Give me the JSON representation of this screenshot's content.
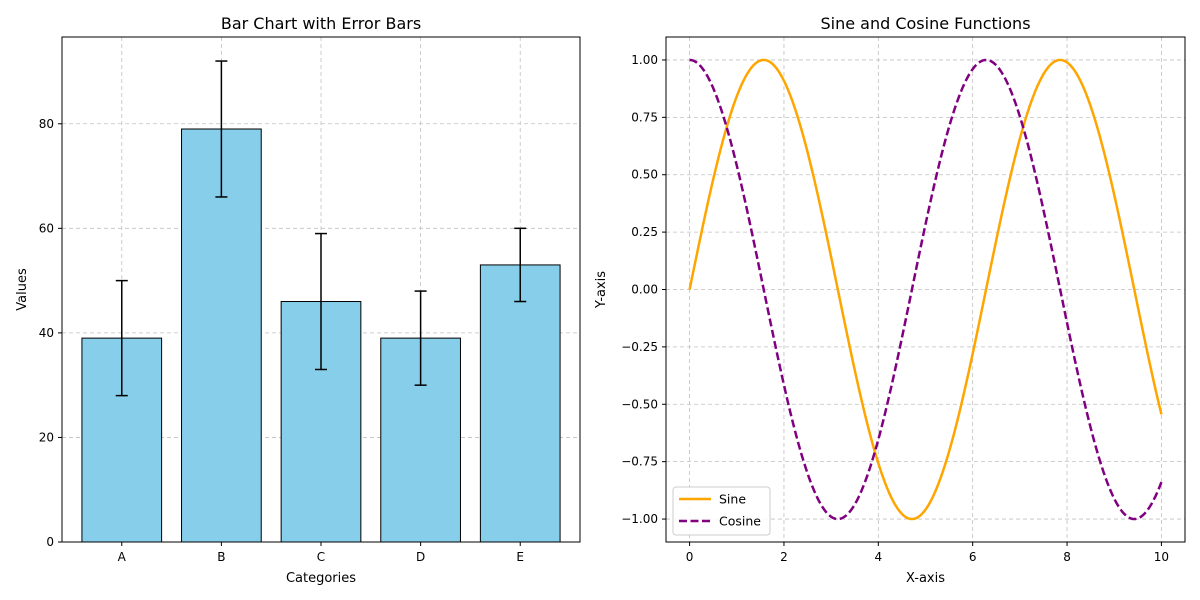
{
  "chart_data": [
    {
      "type": "bar",
      "title": "Bar Chart with Error Bars",
      "xlabel": "Categories",
      "ylabel": "Values",
      "categories": [
        "A",
        "B",
        "C",
        "D",
        "E"
      ],
      "values": [
        39,
        79,
        46,
        39,
        53
      ],
      "errors": [
        11,
        13,
        13,
        9,
        7
      ],
      "ylim": [
        0,
        96.6
      ],
      "yticks": [
        0,
        20,
        40,
        60,
        80
      ],
      "grid": true,
      "colors": {
        "bar_fill": "#87ceeb",
        "bar_edge": "#000000",
        "error_bar": "#000000",
        "grid": "#c0c0c0"
      }
    },
    {
      "type": "line",
      "title": "Sine and Cosine Functions",
      "xlabel": "X-axis",
      "ylabel": "Y-axis",
      "x_range": [
        0,
        10
      ],
      "xlim": [
        -0.5,
        10.5
      ],
      "ylim": [
        -1.1,
        1.1
      ],
      "xticks": [
        0,
        2,
        4,
        6,
        8,
        10
      ],
      "yticks": [
        1.0,
        0.75,
        0.5,
        0.25,
        0.0,
        -0.25,
        -0.5,
        -0.75,
        -1.0
      ],
      "ytick_labels": [
        "1.00",
        "0.75",
        "0.50",
        "0.25",
        "0.00",
        "−0.25",
        "−0.50",
        "−0.75",
        "−1.00"
      ],
      "grid": true,
      "legend_position": "lower-left",
      "series": [
        {
          "name": "Sine",
          "function": "sin",
          "color": "#ffa500",
          "style": "solid"
        },
        {
          "name": "Cosine",
          "function": "cos",
          "color": "#800080",
          "style": "dashed"
        }
      ]
    }
  ]
}
